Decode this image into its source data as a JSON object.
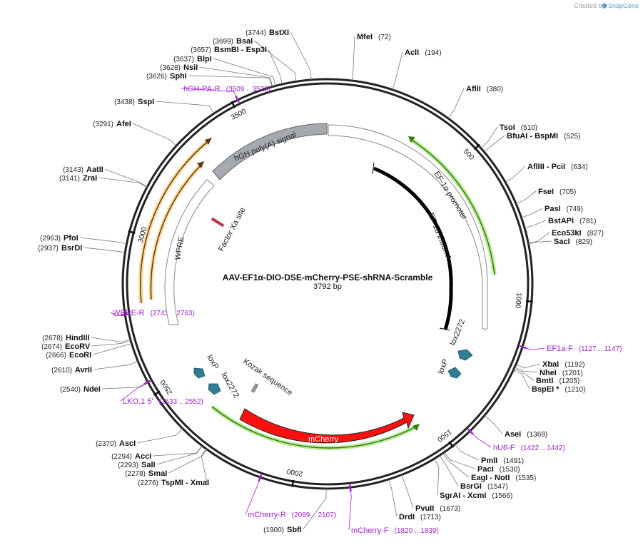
{
  "credit": {
    "prefix": "Created by",
    "brand": "SnapGene"
  },
  "plasmid": {
    "name": "AAV-EF1α-DIO-DSE-mCherry-PSE-shRNA-Scramble",
    "size_label": "3792 bp",
    "length": 3792
  },
  "ticks": [
    {
      "pos": 500,
      "label": "500"
    },
    {
      "pos": 1000,
      "label": "1000"
    },
    {
      "pos": 1500,
      "label": "1500"
    },
    {
      "pos": 2000,
      "label": "2000"
    },
    {
      "pos": 2500,
      "label": "2500"
    },
    {
      "pos": 3000,
      "label": "3000"
    },
    {
      "pos": 3500,
      "label": "3500"
    }
  ],
  "enzymes": [
    {
      "id": "mfei",
      "name": "MfeI",
      "pos": "(72)",
      "site": 72,
      "layout": "rn"
    },
    {
      "id": "acli",
      "name": "AclI",
      "pos": "(194)",
      "site": 194,
      "layout": "rn"
    },
    {
      "id": "aflii",
      "name": "AflII",
      "pos": "(380)",
      "site": 380,
      "layout": "rn"
    },
    {
      "id": "tsoi",
      "name": "TsoI",
      "pos": "(510)",
      "site": 510,
      "layout": "rn"
    },
    {
      "id": "bfuai",
      "name": "BfuAI  - BspMI",
      "pos": "(525)",
      "site": 525,
      "layout": "rn"
    },
    {
      "id": "afliii",
      "name": "AflIII  - PciI",
      "pos": "(634)",
      "site": 634,
      "layout": "rn"
    },
    {
      "id": "fsei",
      "name": "FseI",
      "pos": "(705)",
      "site": 705,
      "layout": "rn"
    },
    {
      "id": "pasi",
      "name": "PasI",
      "pos": "(749)",
      "site": 749,
      "layout": "rn"
    },
    {
      "id": "bstapi",
      "name": "BstAPI",
      "pos": "(781)",
      "site": 781,
      "layout": "rn"
    },
    {
      "id": "eco53ki",
      "name": "Eco53kI",
      "pos": "(827)",
      "site": 827,
      "layout": "rn"
    },
    {
      "id": "saci",
      "name": "SacI",
      "pos": "(829)",
      "site": 829,
      "layout": "rn"
    },
    {
      "id": "xbai",
      "name": "XbaI",
      "pos": "(1192)",
      "site": 1192,
      "layout": "rn"
    },
    {
      "id": "nhei",
      "name": "NheI",
      "pos": "(1201)",
      "site": 1201,
      "layout": "rn"
    },
    {
      "id": "bmti",
      "name": "BmtI",
      "pos": "(1205)",
      "site": 1205,
      "layout": "rn"
    },
    {
      "id": "bspei",
      "name": "BspEI *",
      "pos": "(1210)",
      "site": 1210,
      "layout": "rn"
    },
    {
      "id": "asei",
      "name": "AseI",
      "pos": "(1369)",
      "site": 1369,
      "layout": "rn"
    },
    {
      "id": "pmli",
      "name": "PmlI",
      "pos": "(1491)",
      "site": 1491,
      "layout": "rn"
    },
    {
      "id": "paci",
      "name": "PacI",
      "pos": "(1530)",
      "site": 1530,
      "layout": "rn"
    },
    {
      "id": "eagi",
      "name": "EagI  - NotI",
      "pos": "(1535)",
      "site": 1535,
      "layout": "rn"
    },
    {
      "id": "bsrgi",
      "name": "BsrGI",
      "pos": "(1547)",
      "site": 1547,
      "layout": "rn"
    },
    {
      "id": "sgrai",
      "name": "SgrAI  - XcmI",
      "pos": "(1566)",
      "site": 1566,
      "layout": "rn"
    },
    {
      "id": "pvuii",
      "name": "PvuII",
      "pos": "(1673)",
      "site": 1673,
      "layout": "rn"
    },
    {
      "id": "drdi",
      "name": "DrdI",
      "pos": "(1713)",
      "site": 1713,
      "layout": "rn"
    },
    {
      "id": "sbfi",
      "name": "SbfI",
      "pos": "(1900)",
      "site": 1900,
      "layout": "pn"
    },
    {
      "id": "tspmi",
      "name": "TspMI  - XmaI",
      "pos": "(2276)",
      "site": 2276,
      "layout": "pn"
    },
    {
      "id": "smai",
      "name": "SmaI",
      "pos": "(2278)",
      "site": 2278,
      "layout": "pn"
    },
    {
      "id": "sali",
      "name": "SalI",
      "pos": "(2293)",
      "site": 2293,
      "layout": "pn"
    },
    {
      "id": "acci",
      "name": "AccI",
      "pos": "(2294)",
      "site": 2294,
      "layout": "pn"
    },
    {
      "id": "asci",
      "name": "AscI",
      "pos": "(2370)",
      "site": 2370,
      "layout": "pn"
    },
    {
      "id": "ndei",
      "name": "NdeI",
      "pos": "(2540)",
      "site": 2540,
      "layout": "pn"
    },
    {
      "id": "avrii",
      "name": "AvrII",
      "pos": "(2610)",
      "site": 2610,
      "layout": "pn"
    },
    {
      "id": "ecori",
      "name": "EcoRI",
      "pos": "(2666)",
      "site": 2666,
      "layout": "pn"
    },
    {
      "id": "ecorv",
      "name": "EcoRV",
      "pos": "(2674)",
      "site": 2674,
      "layout": "pn"
    },
    {
      "id": "hindiii",
      "name": "HindIII",
      "pos": "(2678)",
      "site": 2678,
      "layout": "pn"
    },
    {
      "id": "bsrdi",
      "name": "BsrDI",
      "pos": "(2937)",
      "site": 2937,
      "layout": "pn"
    },
    {
      "id": "pfoi",
      "name": "PfoI",
      "pos": "(2963)",
      "site": 2963,
      "layout": "pn"
    },
    {
      "id": "zrai",
      "name": "ZraI",
      "pos": "(3141)",
      "site": 3141,
      "layout": "pn"
    },
    {
      "id": "aatii",
      "name": "AatII",
      "pos": "(3143)",
      "site": 3143,
      "layout": "pn"
    },
    {
      "id": "afei",
      "name": "AfeI",
      "pos": "(3291)",
      "site": 3291,
      "layout": "pn"
    },
    {
      "id": "sspi",
      "name": "SspI",
      "pos": "(3438)",
      "site": 3438,
      "layout": "pn"
    },
    {
      "id": "sphi",
      "name": "SphI",
      "pos": "(3626)",
      "site": 3626,
      "layout": "pn"
    },
    {
      "id": "nsii",
      "name": "NsiI",
      "pos": "(3628)",
      "site": 3628,
      "layout": "pn"
    },
    {
      "id": "blpi",
      "name": "BlpI",
      "pos": "(3637)",
      "site": 3637,
      "layout": "pn"
    },
    {
      "id": "bsmbi",
      "name": "BsmBI  - Esp3I",
      "pos": "(3657)",
      "site": 3657,
      "layout": "pn"
    },
    {
      "id": "bsai",
      "name": "BsaI",
      "pos": "(3699)",
      "site": 3699,
      "layout": "pn"
    },
    {
      "id": "bstxi",
      "name": "BstXI",
      "pos": "(3744)",
      "site": 3744,
      "layout": "pn"
    }
  ],
  "primers": [
    {
      "id": "ef1af",
      "name": "EF1a-F",
      "range": "(1127 .. 1147)",
      "site": 1137,
      "layout": "nr"
    },
    {
      "id": "hu6f",
      "name": "hU6-F",
      "range": "(1422 .. 1442)",
      "site": 1432,
      "layout": "nr"
    },
    {
      "id": "mcherryf",
      "name": "mCherry-F",
      "range": "(1820 .. 1839)",
      "site": 1829,
      "layout": "nr"
    },
    {
      "id": "mcherryr",
      "name": "mCherry-R",
      "range": "(2089 .. 2107)",
      "site": 2098,
      "layout": "rn"
    },
    {
      "id": "lko1",
      "name": "LKO.1 5'",
      "range": "(2533 .. 2552)",
      "site": 2542,
      "layout": "rn"
    },
    {
      "id": "wprer",
      "name": "WPRE-R",
      "range": "(2743 .. 2763)",
      "site": 2753,
      "layout": "rn"
    },
    {
      "id": "hghpar",
      "name": "hGH-PA-R",
      "range": "(3509 .. 3528)",
      "site": 3518,
      "layout": "rn"
    }
  ],
  "features": [
    {
      "id": "ef1a-promoter",
      "label": "EF-1α promoter",
      "color": "#ffffff"
    },
    {
      "id": "ef1a-intron",
      "label": "EF-1α intron A",
      "color": "#000000"
    },
    {
      "id": "lox2272-right",
      "label": "lox2272",
      "color": "#2e7f96"
    },
    {
      "id": "loxp-right",
      "label": "loxP",
      "color": "#2e7f96"
    },
    {
      "id": "mcherry",
      "label": "mCherry",
      "color": "#ff1010"
    },
    {
      "id": "kozak",
      "label": "Kozak sequence",
      "color": "#9a9a9a"
    },
    {
      "id": "lox2272-left",
      "label": "lox2272",
      "color": "#2e7f96"
    },
    {
      "id": "loxp-left",
      "label": "loxP",
      "color": "#2e7f96"
    },
    {
      "id": "wpre",
      "label": "WPRE",
      "color": "#ffffff"
    },
    {
      "id": "factor-xa",
      "label": "Factor Xa site",
      "color": "#cc3344"
    },
    {
      "id": "hgh-polya",
      "label": "hGH poly(A) signal",
      "color": "#a6aab0"
    }
  ],
  "colors": {
    "backbone": "#222222",
    "primer": "#a020d0",
    "orf_green": "#5cc020",
    "orf_orange": "#f0a020"
  }
}
